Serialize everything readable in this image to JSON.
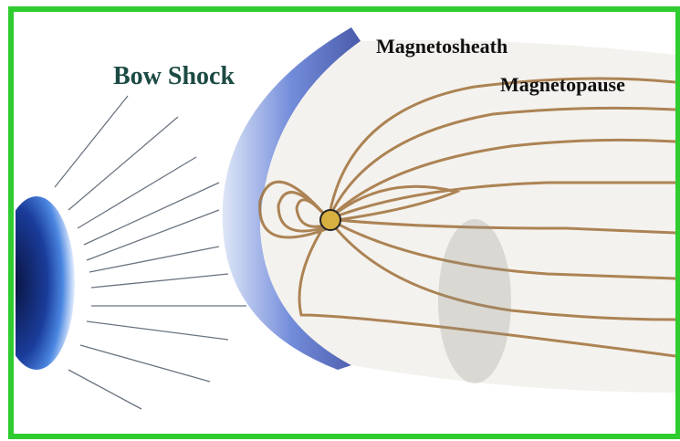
{
  "labels": {
    "bow_shock": "Bow Shock",
    "magnetosheath": "Magnetosheath",
    "magnetopause": "Magnetopause"
  }
}
